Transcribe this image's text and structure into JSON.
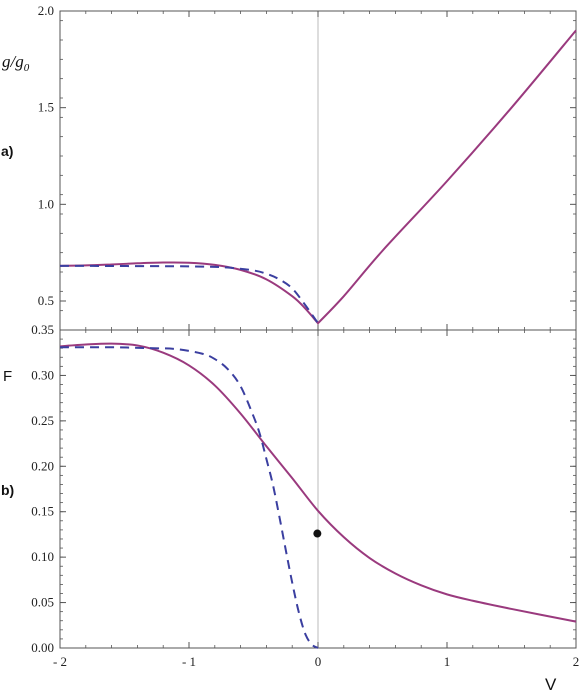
{
  "figure": {
    "colors": {
      "solid": "#9a3a7e",
      "dashed": "#3b3fa0",
      "frame": "#555555",
      "vline": "#bbbbbb"
    }
  },
  "chart_data": [
    {
      "type": "line",
      "panel_label": "a)",
      "ylabel": {
        "main": "g/g",
        "sub": "0"
      },
      "xlim": [
        -2,
        2
      ],
      "ylim": [
        0.35,
        2.0
      ],
      "yticks": [
        0.35,
        0.5,
        1.0,
        1.5,
        2.0
      ],
      "ytick_labels": [
        "0.35",
        "0.5",
        "1.0",
        "1.5",
        "2.0"
      ],
      "vertical_line_x": 0,
      "series": [
        {
          "style": "solid",
          "x": [
            -2.0,
            -1.8,
            -1.6,
            -1.4,
            -1.2,
            -1.0,
            -0.8,
            -0.6,
            -0.4,
            -0.2,
            -0.1,
            0.0,
            0.2,
            0.5,
            1.0,
            1.5,
            2.0
          ],
          "y": [
            0.682,
            0.684,
            0.689,
            0.695,
            0.699,
            0.698,
            0.687,
            0.661,
            0.612,
            0.525,
            0.462,
            0.385,
            0.525,
            0.76,
            1.12,
            1.5,
            1.9
          ]
        },
        {
          "style": "dashed",
          "x": [
            -2.0,
            -1.6,
            -1.2,
            -0.9,
            -0.7,
            -0.5,
            -0.4,
            -0.3,
            -0.2,
            -0.1,
            0.0
          ],
          "y": [
            0.682,
            0.681,
            0.68,
            0.678,
            0.673,
            0.658,
            0.641,
            0.612,
            0.565,
            0.48,
            0.385
          ]
        }
      ]
    },
    {
      "type": "line",
      "panel_label": "b)",
      "ylabel": "F",
      "xlabel": "V",
      "xlim": [
        -2,
        2
      ],
      "ylim": [
        0,
        0.35
      ],
      "xticks": [
        -2,
        -1,
        0,
        1,
        2
      ],
      "xtick_labels": [
        "- 2",
        "- 1",
        "0",
        "1",
        "2"
      ],
      "yticks": [
        0,
        0.05,
        0.1,
        0.15,
        0.2,
        0.25,
        0.3
      ],
      "ytick_labels": [
        "0.00",
        "0.05",
        "0.10",
        "0.15",
        "0.20",
        "0.25",
        "0.30"
      ],
      "vertical_line_x": 0,
      "series": [
        {
          "style": "solid",
          "x": [
            -2.0,
            -1.8,
            -1.6,
            -1.4,
            -1.2,
            -1.0,
            -0.8,
            -0.6,
            -0.4,
            -0.2,
            0.0,
            0.2,
            0.4,
            0.6,
            0.8,
            1.0,
            1.2,
            1.5,
            2.0
          ],
          "y": [
            0.332,
            0.334,
            0.335,
            0.333,
            0.325,
            0.311,
            0.289,
            0.258,
            0.222,
            0.187,
            0.151,
            0.122,
            0.099,
            0.082,
            0.069,
            0.059,
            0.052,
            0.043,
            0.029
          ]
        },
        {
          "style": "dashed",
          "x": [
            -2.0,
            -1.6,
            -1.3,
            -1.1,
            -0.9,
            -0.8,
            -0.7,
            -0.6,
            -0.5,
            -0.45,
            -0.4,
            -0.35,
            -0.3,
            -0.25,
            -0.2,
            -0.15,
            -0.1,
            -0.05,
            0.0
          ],
          "y": [
            0.331,
            0.331,
            0.33,
            0.329,
            0.324,
            0.318,
            0.307,
            0.288,
            0.255,
            0.235,
            0.208,
            0.18,
            0.145,
            0.108,
            0.072,
            0.04,
            0.016,
            0.004,
            0.0
          ]
        }
      ],
      "points": [
        {
          "x": -0.005,
          "y": 0.126
        }
      ]
    }
  ]
}
